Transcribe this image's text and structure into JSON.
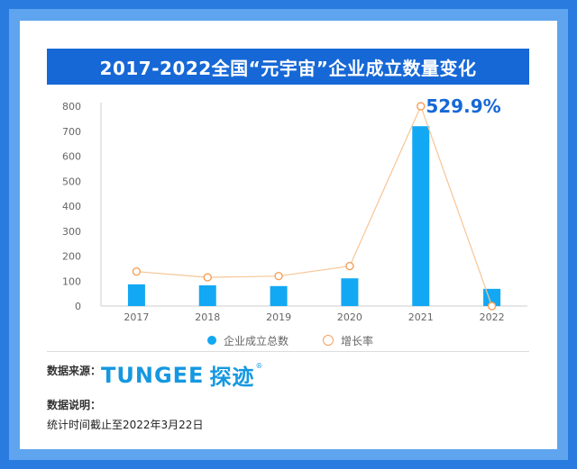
{
  "title": "2017-2022全国“元宇宙”企业成立数量变化",
  "chart_data": {
    "type": "bar",
    "categories": [
      "2017",
      "2018",
      "2019",
      "2020",
      "2021",
      "2022"
    ],
    "series": [
      {
        "name": "企业成立总数",
        "type": "bar",
        "color": "#13a8f3",
        "values": [
          87,
          83,
          80,
          111,
          720,
          69
        ]
      },
      {
        "name": "增长率",
        "type": "line",
        "color": "#f5a05a",
        "values": [
          138,
          115,
          120,
          160,
          800,
          0
        ]
      }
    ],
    "yticks": [
      0,
      100,
      200,
      300,
      400,
      500,
      600,
      700,
      800
    ],
    "ylim": [
      0,
      800
    ],
    "annotation": "529.9%",
    "grid": false,
    "legend_position": "bottom"
  },
  "legend": {
    "bar_label": "企业成立总数",
    "line_label": "增长率"
  },
  "source": {
    "label": "数据来源：",
    "logo_text": "TUNGEE",
    "logo_cn": "探迹",
    "logo_reg": "®"
  },
  "note": {
    "label": "数据说明：",
    "text": "统计时间截止至2022年3月22日"
  }
}
